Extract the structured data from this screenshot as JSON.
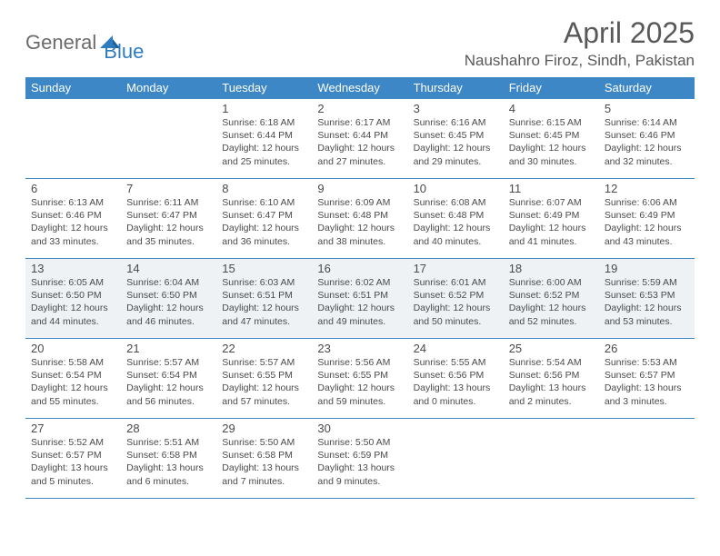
{
  "brand": {
    "part1": "General",
    "part2": "Blue"
  },
  "title": "April 2025",
  "location": "Naushahro Firoz, Sindh, Pakistan",
  "colors": {
    "header_bg": "#3d87c7",
    "header_fg": "#ffffff",
    "border": "#3d87c7",
    "shade": "#eef2f5",
    "text": "#4a4a4a",
    "brand_blue": "#2f7bbf",
    "brand_gray": "#6b6b6b"
  },
  "daysOfWeek": [
    "Sunday",
    "Monday",
    "Tuesday",
    "Wednesday",
    "Thursday",
    "Friday",
    "Saturday"
  ],
  "weeks": [
    {
      "shaded": false,
      "cells": [
        null,
        null,
        {
          "n": "1",
          "sr": "6:18 AM",
          "ss": "6:44 PM",
          "dl": "12 hours and 25 minutes."
        },
        {
          "n": "2",
          "sr": "6:17 AM",
          "ss": "6:44 PM",
          "dl": "12 hours and 27 minutes."
        },
        {
          "n": "3",
          "sr": "6:16 AM",
          "ss": "6:45 PM",
          "dl": "12 hours and 29 minutes."
        },
        {
          "n": "4",
          "sr": "6:15 AM",
          "ss": "6:45 PM",
          "dl": "12 hours and 30 minutes."
        },
        {
          "n": "5",
          "sr": "6:14 AM",
          "ss": "6:46 PM",
          "dl": "12 hours and 32 minutes."
        }
      ]
    },
    {
      "shaded": false,
      "cells": [
        {
          "n": "6",
          "sr": "6:13 AM",
          "ss": "6:46 PM",
          "dl": "12 hours and 33 minutes."
        },
        {
          "n": "7",
          "sr": "6:11 AM",
          "ss": "6:47 PM",
          "dl": "12 hours and 35 minutes."
        },
        {
          "n": "8",
          "sr": "6:10 AM",
          "ss": "6:47 PM",
          "dl": "12 hours and 36 minutes."
        },
        {
          "n": "9",
          "sr": "6:09 AM",
          "ss": "6:48 PM",
          "dl": "12 hours and 38 minutes."
        },
        {
          "n": "10",
          "sr": "6:08 AM",
          "ss": "6:48 PM",
          "dl": "12 hours and 40 minutes."
        },
        {
          "n": "11",
          "sr": "6:07 AM",
          "ss": "6:49 PM",
          "dl": "12 hours and 41 minutes."
        },
        {
          "n": "12",
          "sr": "6:06 AM",
          "ss": "6:49 PM",
          "dl": "12 hours and 43 minutes."
        }
      ]
    },
    {
      "shaded": true,
      "cells": [
        {
          "n": "13",
          "sr": "6:05 AM",
          "ss": "6:50 PM",
          "dl": "12 hours and 44 minutes."
        },
        {
          "n": "14",
          "sr": "6:04 AM",
          "ss": "6:50 PM",
          "dl": "12 hours and 46 minutes."
        },
        {
          "n": "15",
          "sr": "6:03 AM",
          "ss": "6:51 PM",
          "dl": "12 hours and 47 minutes."
        },
        {
          "n": "16",
          "sr": "6:02 AM",
          "ss": "6:51 PM",
          "dl": "12 hours and 49 minutes."
        },
        {
          "n": "17",
          "sr": "6:01 AM",
          "ss": "6:52 PM",
          "dl": "12 hours and 50 minutes."
        },
        {
          "n": "18",
          "sr": "6:00 AM",
          "ss": "6:52 PM",
          "dl": "12 hours and 52 minutes."
        },
        {
          "n": "19",
          "sr": "5:59 AM",
          "ss": "6:53 PM",
          "dl": "12 hours and 53 minutes."
        }
      ]
    },
    {
      "shaded": false,
      "cells": [
        {
          "n": "20",
          "sr": "5:58 AM",
          "ss": "6:54 PM",
          "dl": "12 hours and 55 minutes."
        },
        {
          "n": "21",
          "sr": "5:57 AM",
          "ss": "6:54 PM",
          "dl": "12 hours and 56 minutes."
        },
        {
          "n": "22",
          "sr": "5:57 AM",
          "ss": "6:55 PM",
          "dl": "12 hours and 57 minutes."
        },
        {
          "n": "23",
          "sr": "5:56 AM",
          "ss": "6:55 PM",
          "dl": "12 hours and 59 minutes."
        },
        {
          "n": "24",
          "sr": "5:55 AM",
          "ss": "6:56 PM",
          "dl": "13 hours and 0 minutes."
        },
        {
          "n": "25",
          "sr": "5:54 AM",
          "ss": "6:56 PM",
          "dl": "13 hours and 2 minutes."
        },
        {
          "n": "26",
          "sr": "5:53 AM",
          "ss": "6:57 PM",
          "dl": "13 hours and 3 minutes."
        }
      ]
    },
    {
      "shaded": false,
      "cells": [
        {
          "n": "27",
          "sr": "5:52 AM",
          "ss": "6:57 PM",
          "dl": "13 hours and 5 minutes."
        },
        {
          "n": "28",
          "sr": "5:51 AM",
          "ss": "6:58 PM",
          "dl": "13 hours and 6 minutes."
        },
        {
          "n": "29",
          "sr": "5:50 AM",
          "ss": "6:58 PM",
          "dl": "13 hours and 7 minutes."
        },
        {
          "n": "30",
          "sr": "5:50 AM",
          "ss": "6:59 PM",
          "dl": "13 hours and 9 minutes."
        },
        null,
        null,
        null
      ]
    }
  ],
  "labels": {
    "sunrise": "Sunrise:",
    "sunset": "Sunset:",
    "daylight": "Daylight:"
  }
}
